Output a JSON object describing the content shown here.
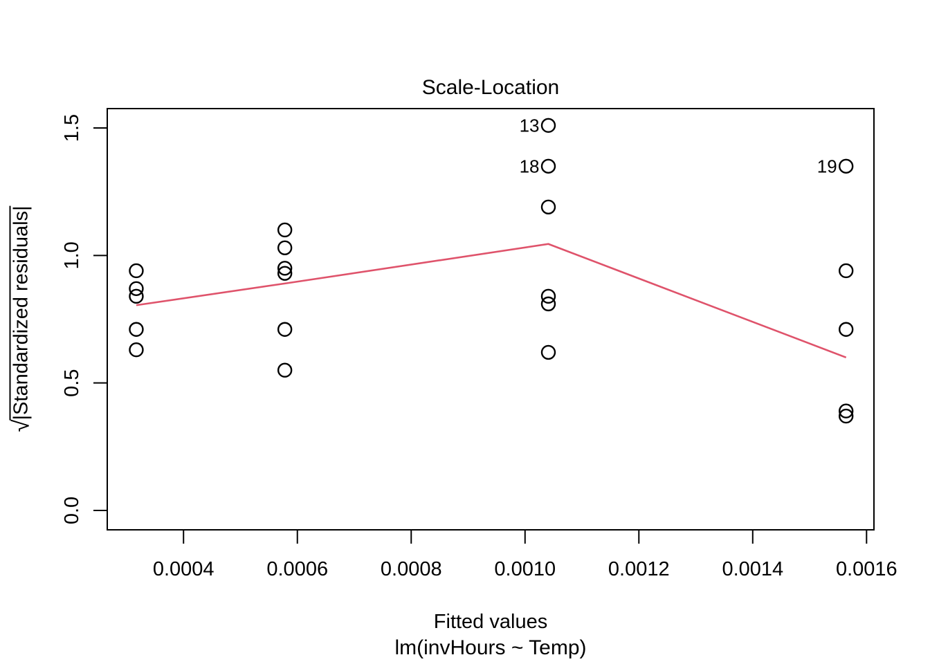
{
  "title": "Scale-Location",
  "axes": {
    "x": {
      "label": "Fitted values",
      "sublabel": "lm(invHours ~ Temp)",
      "tick_values": [
        0.0004,
        0.0006,
        0.0008,
        0.001,
        0.0012,
        0.0014,
        0.0016
      ],
      "tick_labels": [
        "0.0004",
        "0.0006",
        "0.0008",
        "0.0010",
        "0.0012",
        "0.0014",
        "0.0016"
      ]
    },
    "y": {
      "label_sqrt_symbol": "√",
      "label_radicand": "|Standardized residuals|",
      "tick_values": [
        0.0,
        0.5,
        1.0,
        1.5
      ],
      "tick_labels": [
        "0.0",
        "0.5",
        "1.0",
        "1.5"
      ]
    }
  },
  "colors": {
    "background": "#ffffff",
    "foreground": "#000000",
    "smooth_line": "#DF536B",
    "point_stroke": "#000000"
  },
  "chart_data": {
    "type": "scatter",
    "title": "Scale-Location",
    "xlabel": "Fitted values",
    "xlabel_line2": "lm(invHours ~ Temp)",
    "ylabel": "sqrt(|Standardized residuals|)",
    "xlim": [
      0.000266,
      0.001613
    ],
    "ylim": [
      -0.076,
      1.576
    ],
    "grid": false,
    "points": [
      {
        "x": 0.000317,
        "y": 0.94
      },
      {
        "x": 0.000317,
        "y": 0.87
      },
      {
        "x": 0.000317,
        "y": 0.84
      },
      {
        "x": 0.000317,
        "y": 0.71
      },
      {
        "x": 0.000317,
        "y": 0.63
      },
      {
        "x": 0.000578,
        "y": 1.1
      },
      {
        "x": 0.000578,
        "y": 1.03
      },
      {
        "x": 0.000578,
        "y": 0.95
      },
      {
        "x": 0.000578,
        "y": 0.93
      },
      {
        "x": 0.000578,
        "y": 0.71
      },
      {
        "x": 0.000578,
        "y": 0.55
      },
      {
        "x": 0.001041,
        "y": 1.51,
        "label": "13"
      },
      {
        "x": 0.001041,
        "y": 1.35,
        "label": "18"
      },
      {
        "x": 0.001041,
        "y": 1.19
      },
      {
        "x": 0.001041,
        "y": 0.84
      },
      {
        "x": 0.001041,
        "y": 0.81
      },
      {
        "x": 0.001041,
        "y": 0.62
      },
      {
        "x": 0.001564,
        "y": 1.35,
        "label": "19"
      },
      {
        "x": 0.001564,
        "y": 0.94
      },
      {
        "x": 0.001564,
        "y": 0.71
      },
      {
        "x": 0.001564,
        "y": 0.39
      },
      {
        "x": 0.001564,
        "y": 0.37
      }
    ],
    "smooth_line": {
      "name": "lowess-smooth",
      "color": "#DF536B",
      "points": [
        {
          "x": 0.000317,
          "y": 0.805
        },
        {
          "x": 0.000578,
          "y": 0.89
        },
        {
          "x": 0.001041,
          "y": 1.045
        },
        {
          "x": 0.001564,
          "y": 0.6
        }
      ]
    }
  }
}
